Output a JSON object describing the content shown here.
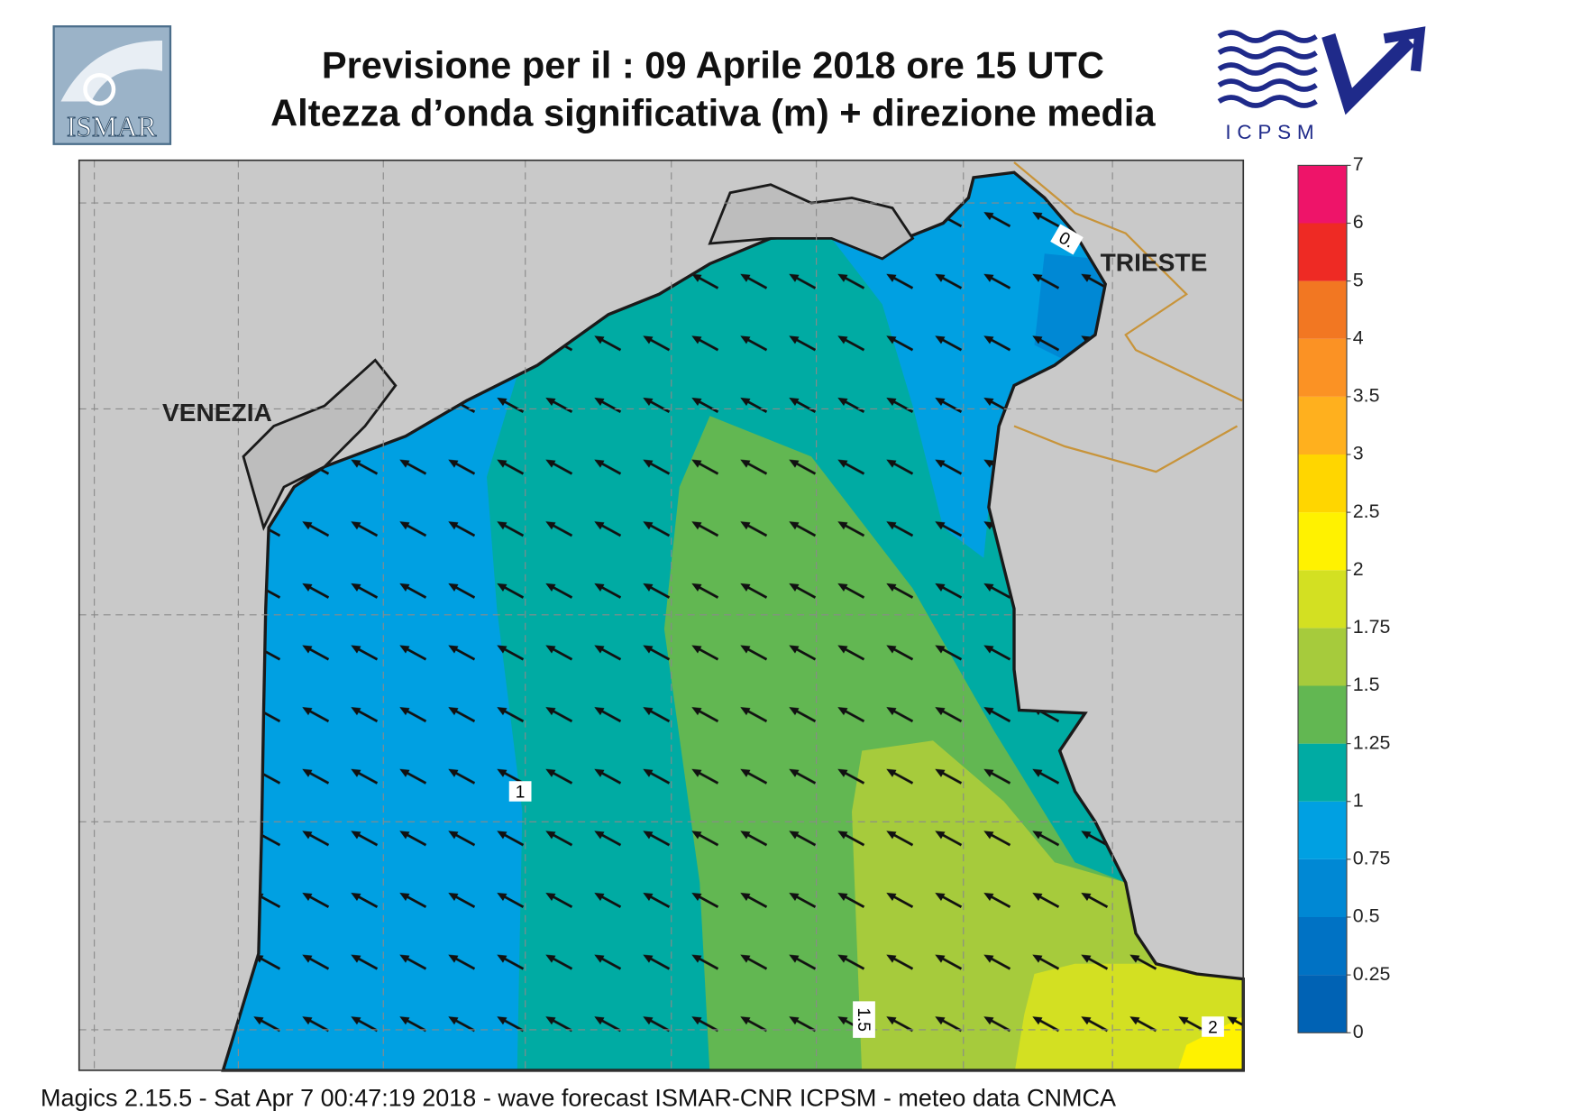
{
  "header": {
    "title_line1": "Previsione per il  :  09   Aprile  2018   ore 15 UTC",
    "title_line2": "Altezza d’onda significativa (m) + direzione media",
    "logo_left": "ISMAR",
    "logo_right": "ICPSM"
  },
  "map": {
    "cities": [
      "VENEZIA",
      "TRIESTE"
    ],
    "contour_labels": [
      "1",
      "1.5",
      "2",
      "0."
    ]
  },
  "colorbar": {
    "levels": [
      0,
      0.25,
      0.5,
      0.75,
      1,
      1.25,
      1.5,
      1.75,
      2,
      2.5,
      3,
      3.5,
      4,
      5,
      6,
      7
    ],
    "colors": [
      "#0062b4",
      "#0072c4",
      "#0088d4",
      "#00a0e2",
      "#00aba3",
      "#62b752",
      "#a6cb3c",
      "#d3e022",
      "#fff200",
      "#ffd600",
      "#ffb01e",
      "#fb9224",
      "#f27722",
      "#ee2a24",
      "#ee1469"
    ]
  },
  "footer": "Magics 2.15.5 - Sat Apr  7 00:47:19 2018 - wave forecast  ISMAR-CNR  ICPSM - meteo data    CNMCA"
}
